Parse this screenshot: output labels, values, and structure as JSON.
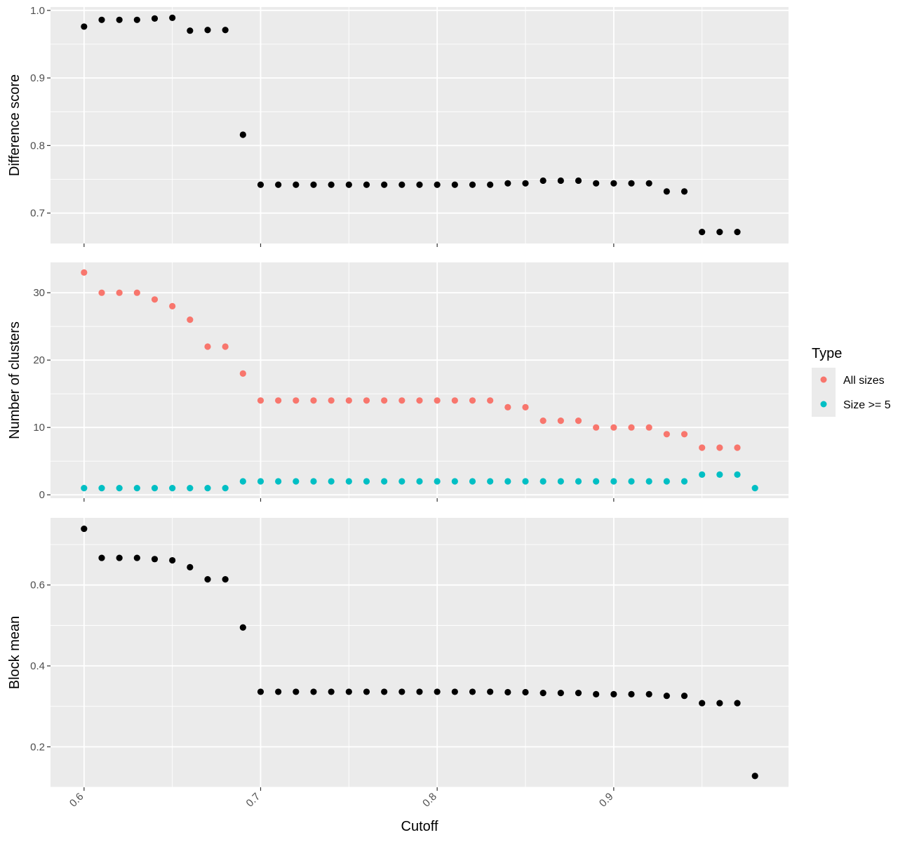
{
  "chart_data": [
    {
      "type": "scatter",
      "panel": "top",
      "ylabel": "Difference score",
      "xlabel": "",
      "xlim": [
        0.581,
        0.999
      ],
      "ylim": [
        0.655,
        1.005
      ],
      "xticks": [
        0.6,
        0.7,
        0.8,
        0.9
      ],
      "yticks": [
        0.7,
        0.8,
        0.9,
        1.0
      ],
      "ytick_labels": [
        "0.7",
        "0.8",
        "0.9",
        "1.0"
      ],
      "grid": true,
      "series": [
        {
          "color": "#000000",
          "x": [
            0.6,
            0.61,
            0.62,
            0.63,
            0.64,
            0.65,
            0.66,
            0.67,
            0.68,
            0.69,
            0.7,
            0.71,
            0.72,
            0.73,
            0.74,
            0.75,
            0.76,
            0.77,
            0.78,
            0.79,
            0.8,
            0.81,
            0.82,
            0.83,
            0.84,
            0.85,
            0.86,
            0.87,
            0.88,
            0.89,
            0.9,
            0.91,
            0.92,
            0.93,
            0.94,
            0.95,
            0.96,
            0.97
          ],
          "y": [
            0.976,
            0.986,
            0.986,
            0.986,
            0.988,
            0.989,
            0.97,
            0.971,
            0.971,
            0.816,
            0.742,
            0.742,
            0.742,
            0.742,
            0.742,
            0.742,
            0.742,
            0.742,
            0.742,
            0.742,
            0.742,
            0.742,
            0.742,
            0.742,
            0.744,
            0.744,
            0.748,
            0.748,
            0.748,
            0.744,
            0.744,
            0.744,
            0.744,
            0.732,
            0.732,
            0.672,
            0.672,
            0.672
          ]
        }
      ]
    },
    {
      "type": "scatter",
      "panel": "middle",
      "ylabel": "Number of clusters",
      "xlabel": "",
      "xlim": [
        0.581,
        0.999
      ],
      "ylim": [
        -0.5,
        34.5
      ],
      "xticks": [
        0.6,
        0.7,
        0.8,
        0.9
      ],
      "yticks": [
        0,
        10,
        20,
        30
      ],
      "ytick_labels": [
        "0",
        "10",
        "20",
        "30"
      ],
      "grid": true,
      "legend": {
        "title": "Type",
        "position": "right"
      },
      "series": [
        {
          "name": "All sizes",
          "color": "#F8766D",
          "x": [
            0.6,
            0.61,
            0.62,
            0.63,
            0.64,
            0.65,
            0.66,
            0.67,
            0.68,
            0.69,
            0.7,
            0.71,
            0.72,
            0.73,
            0.74,
            0.75,
            0.76,
            0.77,
            0.78,
            0.79,
            0.8,
            0.81,
            0.82,
            0.83,
            0.84,
            0.85,
            0.86,
            0.87,
            0.88,
            0.89,
            0.9,
            0.91,
            0.92,
            0.93,
            0.94,
            0.95,
            0.96,
            0.97
          ],
          "y": [
            33,
            30,
            30,
            30,
            29,
            28,
            26,
            22,
            22,
            18,
            14,
            14,
            14,
            14,
            14,
            14,
            14,
            14,
            14,
            14,
            14,
            14,
            14,
            14,
            13,
            13,
            11,
            11,
            11,
            10,
            10,
            10,
            10,
            9,
            9,
            7,
            7,
            7
          ]
        },
        {
          "name": "Size >= 5",
          "color": "#00BFC4",
          "x": [
            0.6,
            0.61,
            0.62,
            0.63,
            0.64,
            0.65,
            0.66,
            0.67,
            0.68,
            0.69,
            0.7,
            0.71,
            0.72,
            0.73,
            0.74,
            0.75,
            0.76,
            0.77,
            0.78,
            0.79,
            0.8,
            0.81,
            0.82,
            0.83,
            0.84,
            0.85,
            0.86,
            0.87,
            0.88,
            0.89,
            0.9,
            0.91,
            0.92,
            0.93,
            0.94,
            0.95,
            0.96,
            0.97,
            0.98
          ],
          "y": [
            1,
            1,
            1,
            1,
            1,
            1,
            1,
            1,
            1,
            2,
            2,
            2,
            2,
            2,
            2,
            2,
            2,
            2,
            2,
            2,
            2,
            2,
            2,
            2,
            2,
            2,
            2,
            2,
            2,
            2,
            2,
            2,
            2,
            2,
            2,
            3,
            3,
            3,
            1
          ]
        }
      ]
    },
    {
      "type": "scatter",
      "panel": "bottom",
      "ylabel": "Block mean",
      "xlabel": "Cutoff",
      "xlim": [
        0.581,
        0.999
      ],
      "ylim": [
        0.1,
        0.766
      ],
      "xticks": [
        0.6,
        0.7,
        0.8,
        0.9
      ],
      "xtick_labels": [
        "0.6",
        "0.7",
        "0.8",
        "0.9"
      ],
      "yticks": [
        0.2,
        0.4,
        0.6
      ],
      "ytick_labels": [
        "0.2",
        "0.4",
        "0.6"
      ],
      "grid": true,
      "series": [
        {
          "color": "#000000",
          "x": [
            0.6,
            0.61,
            0.62,
            0.63,
            0.64,
            0.65,
            0.66,
            0.67,
            0.68,
            0.69,
            0.7,
            0.71,
            0.72,
            0.73,
            0.74,
            0.75,
            0.76,
            0.77,
            0.78,
            0.79,
            0.8,
            0.81,
            0.82,
            0.83,
            0.84,
            0.85,
            0.86,
            0.87,
            0.88,
            0.89,
            0.9,
            0.91,
            0.92,
            0.93,
            0.94,
            0.95,
            0.96,
            0.97,
            0.98
          ],
          "y": [
            0.739,
            0.667,
            0.667,
            0.667,
            0.664,
            0.661,
            0.644,
            0.614,
            0.614,
            0.495,
            0.336,
            0.336,
            0.336,
            0.336,
            0.336,
            0.336,
            0.336,
            0.336,
            0.336,
            0.336,
            0.336,
            0.336,
            0.336,
            0.336,
            0.335,
            0.335,
            0.333,
            0.333,
            0.333,
            0.33,
            0.33,
            0.33,
            0.33,
            0.326,
            0.326,
            0.308,
            0.308,
            0.308,
            0.128
          ]
        }
      ]
    }
  ]
}
